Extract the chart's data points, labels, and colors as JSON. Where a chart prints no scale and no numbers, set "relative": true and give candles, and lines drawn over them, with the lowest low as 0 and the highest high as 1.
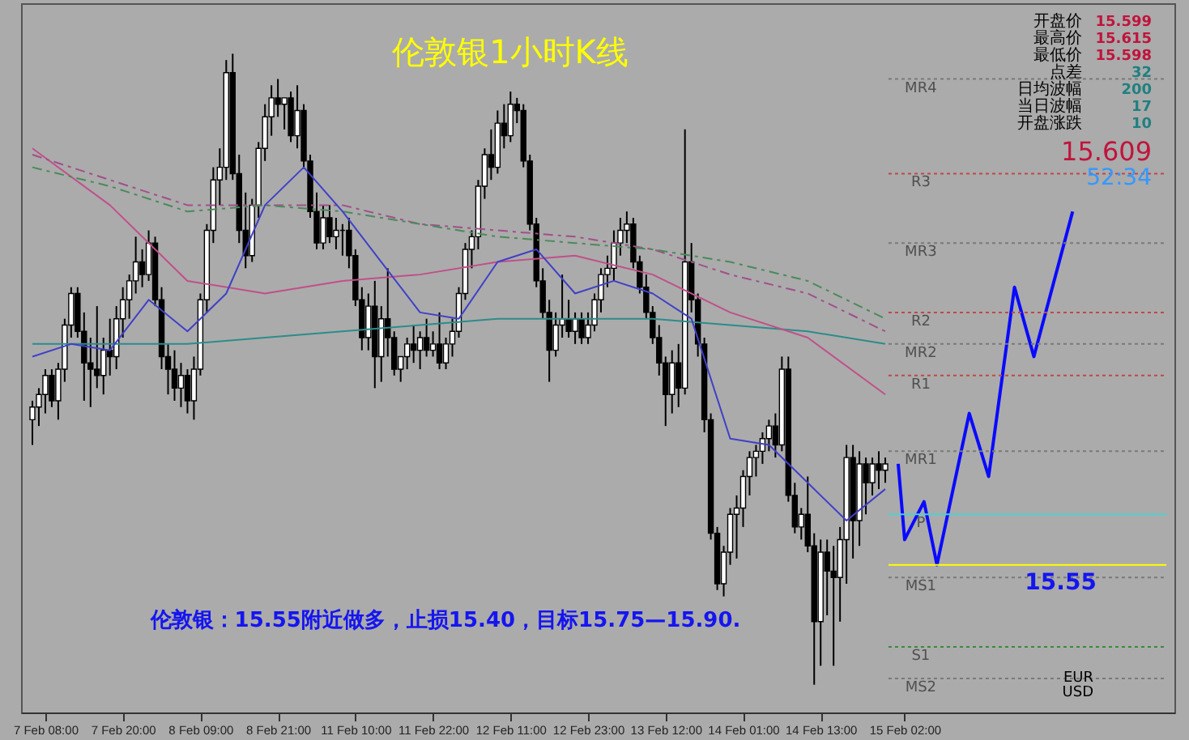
{
  "chart_data": {
    "type": "candlestick",
    "title": "伦敦银1小时K线",
    "relative": true,
    "grid": false,
    "legend": false,
    "tick_labels": "x",
    "categories": [
      null,
      null,
      "7 Feb 08:00",
      null,
      null,
      null,
      null,
      null,
      null,
      null,
      null,
      null,
      null,
      null,
      "7 Feb 20:00",
      null,
      null,
      null,
      null,
      null,
      null,
      null,
      null,
      null,
      null,
      null,
      "8 Feb 09:00",
      null,
      null,
      null,
      null,
      null,
      null,
      null,
      null,
      null,
      null,
      null,
      "8 Feb 21:00",
      null,
      null,
      null,
      null,
      null,
      null,
      null,
      null,
      null,
      null,
      null,
      "11 Feb 10:00",
      null,
      null,
      null,
      null,
      null,
      null,
      null,
      null,
      null,
      null,
      null,
      "11 Feb 22:00",
      null,
      null,
      null,
      null,
      null,
      null,
      null,
      null,
      null,
      null,
      null,
      "12 Feb 11:00",
      null,
      null,
      null,
      null,
      null,
      null,
      null,
      null,
      null,
      null,
      null,
      "12 Feb 23:00",
      null,
      null,
      null,
      null,
      null,
      null,
      null,
      null,
      null,
      null,
      null,
      "13 Feb 12:00",
      null,
      null,
      null,
      null,
      null,
      null,
      null,
      null,
      null,
      null,
      null,
      "14 Feb 01:00",
      null,
      null,
      null,
      null,
      null,
      null,
      null,
      null,
      null,
      null,
      null,
      "14 Feb 13:00",
      null,
      null,
      null,
      null,
      null,
      null,
      null,
      null,
      null,
      null,
      null,
      null,
      "15 Feb 02:00",
      null,
      null,
      null,
      null,
      null,
      null,
      null,
      null,
      null,
      null,
      null,
      null,
      null,
      null,
      null,
      null,
      null,
      null,
      null,
      null,
      null,
      null,
      null,
      null,
      null,
      null,
      null,
      null,
      null,
      null,
      null,
      null,
      null,
      null,
      null,
      null,
      null,
      null,
      null,
      null
    ],
    "ohlc": [
      [
        0.42,
        0.45,
        0.38,
        0.44
      ],
      [
        0.44,
        0.47,
        0.41,
        0.46
      ],
      [
        0.46,
        0.5,
        0.43,
        0.49
      ],
      [
        0.49,
        0.5,
        0.44,
        0.45
      ],
      [
        0.45,
        0.51,
        0.42,
        0.5
      ],
      [
        0.5,
        0.58,
        0.48,
        0.57
      ],
      [
        0.57,
        0.63,
        0.55,
        0.62
      ],
      [
        0.62,
        0.63,
        0.55,
        0.56
      ],
      [
        0.56,
        0.59,
        0.45,
        0.51
      ],
      [
        0.51,
        0.55,
        0.44,
        0.5
      ],
      [
        0.5,
        0.6,
        0.47,
        0.49
      ],
      [
        0.49,
        0.55,
        0.46,
        0.53
      ],
      [
        0.53,
        0.58,
        0.49,
        0.52
      ],
      [
        0.52,
        0.6,
        0.5,
        0.58
      ],
      [
        0.58,
        0.63,
        0.55,
        0.61
      ],
      [
        0.61,
        0.65,
        0.58,
        0.64
      ],
      [
        0.64,
        0.71,
        0.62,
        0.67
      ],
      [
        0.67,
        0.69,
        0.63,
        0.65
      ],
      [
        0.65,
        0.72,
        0.64,
        0.7
      ],
      [
        0.7,
        0.71,
        0.6,
        0.61
      ],
      [
        0.61,
        0.63,
        0.5,
        0.52
      ],
      [
        0.52,
        0.54,
        0.46,
        0.5
      ],
      [
        0.5,
        0.53,
        0.45,
        0.47
      ],
      [
        0.47,
        0.51,
        0.44,
        0.49
      ],
      [
        0.49,
        0.5,
        0.43,
        0.45
      ],
      [
        0.45,
        0.52,
        0.42,
        0.5
      ],
      [
        0.5,
        0.62,
        0.49,
        0.61
      ],
      [
        0.61,
        0.73,
        0.59,
        0.72
      ],
      [
        0.72,
        0.82,
        0.7,
        0.8
      ],
      [
        0.8,
        0.85,
        0.76,
        0.82
      ],
      [
        0.82,
        0.99,
        0.8,
        0.97
      ],
      [
        0.97,
        1.0,
        0.8,
        0.81
      ],
      [
        0.81,
        0.84,
        0.7,
        0.72
      ],
      [
        0.72,
        0.78,
        0.66,
        0.68
      ],
      [
        0.68,
        0.77,
        0.67,
        0.76
      ],
      [
        0.76,
        0.86,
        0.74,
        0.85
      ],
      [
        0.85,
        0.92,
        0.83,
        0.9
      ],
      [
        0.9,
        0.95,
        0.87,
        0.93
      ],
      [
        0.93,
        0.96,
        0.9,
        0.92
      ],
      [
        0.92,
        0.93,
        0.88,
        0.93
      ],
      [
        0.93,
        0.94,
        0.86,
        0.87
      ],
      [
        0.87,
        0.95,
        0.85,
        0.91
      ],
      [
        0.91,
        0.92,
        0.82,
        0.83
      ],
      [
        0.83,
        0.84,
        0.74,
        0.75
      ],
      [
        0.75,
        0.78,
        0.69,
        0.7
      ],
      [
        0.7,
        0.76,
        0.69,
        0.74
      ],
      [
        0.74,
        0.76,
        0.7,
        0.71
      ],
      [
        0.71,
        0.74,
        0.69,
        0.72
      ],
      [
        0.72,
        0.73,
        0.68,
        0.72
      ],
      [
        0.72,
        0.74,
        0.66,
        0.68
      ],
      [
        0.68,
        0.69,
        0.6,
        0.61
      ],
      [
        0.61,
        0.63,
        0.53,
        0.55
      ],
      [
        0.55,
        0.62,
        0.53,
        0.6
      ],
      [
        0.6,
        0.64,
        0.47,
        0.52
      ],
      [
        0.52,
        0.6,
        0.48,
        0.58
      ],
      [
        0.58,
        0.66,
        0.52,
        0.55
      ],
      [
        0.55,
        0.56,
        0.49,
        0.5
      ],
      [
        0.5,
        0.52,
        0.48,
        0.52
      ],
      [
        0.52,
        0.55,
        0.5,
        0.54
      ],
      [
        0.54,
        0.57,
        0.51,
        0.53
      ],
      [
        0.53,
        0.56,
        0.5,
        0.55
      ],
      [
        0.55,
        0.58,
        0.52,
        0.53
      ],
      [
        0.53,
        0.56,
        0.52,
        0.54
      ],
      [
        0.54,
        0.59,
        0.5,
        0.51
      ],
      [
        0.51,
        0.55,
        0.5,
        0.54
      ],
      [
        0.54,
        0.58,
        0.52,
        0.56
      ],
      [
        0.56,
        0.63,
        0.55,
        0.62
      ],
      [
        0.62,
        0.7,
        0.61,
        0.69
      ],
      [
        0.69,
        0.72,
        0.66,
        0.71
      ],
      [
        0.71,
        0.8,
        0.69,
        0.79
      ],
      [
        0.79,
        0.85,
        0.77,
        0.84
      ],
      [
        0.84,
        0.88,
        0.8,
        0.82
      ],
      [
        0.82,
        0.91,
        0.81,
        0.89
      ],
      [
        0.89,
        0.92,
        0.85,
        0.87
      ],
      [
        0.87,
        0.94,
        0.86,
        0.92
      ],
      [
        0.92,
        0.93,
        0.89,
        0.91
      ],
      [
        0.91,
        0.92,
        0.82,
        0.83
      ],
      [
        0.83,
        0.84,
        0.72,
        0.73
      ],
      [
        0.73,
        0.74,
        0.63,
        0.64
      ],
      [
        0.64,
        0.66,
        0.58,
        0.59
      ],
      [
        0.59,
        0.61,
        0.48,
        0.53
      ],
      [
        0.53,
        0.59,
        0.52,
        0.57
      ],
      [
        0.57,
        0.65,
        0.55,
        0.58
      ],
      [
        0.58,
        0.61,
        0.55,
        0.56
      ],
      [
        0.56,
        0.59,
        0.54,
        0.58
      ],
      [
        0.58,
        0.59,
        0.54,
        0.55
      ],
      [
        0.55,
        0.59,
        0.54,
        0.57
      ],
      [
        0.57,
        0.62,
        0.56,
        0.61
      ],
      [
        0.61,
        0.66,
        0.59,
        0.65
      ],
      [
        0.65,
        0.68,
        0.63,
        0.66
      ],
      [
        0.66,
        0.72,
        0.64,
        0.7
      ],
      [
        0.7,
        0.74,
        0.68,
        0.72
      ],
      [
        0.72,
        0.75,
        0.7,
        0.73
      ],
      [
        0.73,
        0.74,
        0.66,
        0.67
      ],
      [
        0.67,
        0.68,
        0.62,
        0.63
      ],
      [
        0.63,
        0.65,
        0.58,
        0.59
      ],
      [
        0.59,
        0.6,
        0.54,
        0.55
      ],
      [
        0.55,
        0.57,
        0.49,
        0.51
      ],
      [
        0.51,
        0.52,
        0.41,
        0.46
      ],
      [
        0.46,
        0.53,
        0.43,
        0.51
      ],
      [
        0.51,
        0.54,
        0.44,
        0.47
      ],
      [
        0.47,
        0.88,
        0.46,
        0.67
      ],
      [
        0.67,
        0.7,
        0.59,
        0.61
      ],
      [
        0.61,
        0.62,
        0.52,
        0.54
      ],
      [
        0.54,
        0.55,
        0.4,
        0.42
      ],
      [
        0.42,
        0.43,
        0.23,
        0.24
      ],
      [
        0.24,
        0.25,
        0.15,
        0.16
      ],
      [
        0.16,
        0.22,
        0.14,
        0.21
      ],
      [
        0.21,
        0.28,
        0.19,
        0.27
      ],
      [
        0.27,
        0.3,
        0.2,
        0.28
      ],
      [
        0.28,
        0.34,
        0.25,
        0.33
      ],
      [
        0.33,
        0.37,
        0.3,
        0.36
      ],
      [
        0.36,
        0.38,
        0.33,
        0.37
      ],
      [
        0.37,
        0.4,
        0.35,
        0.39
      ],
      [
        0.39,
        0.42,
        0.37,
        0.41
      ],
      [
        0.41,
        0.43,
        0.36,
        0.38
      ],
      [
        0.38,
        0.52,
        0.37,
        0.5
      ],
      [
        0.5,
        0.52,
        0.29,
        0.3
      ],
      [
        0.3,
        0.32,
        0.24,
        0.25
      ],
      [
        0.25,
        0.28,
        0.23,
        0.27
      ],
      [
        0.27,
        0.33,
        0.21,
        0.22
      ],
      [
        0.22,
        0.24,
        0.0,
        0.1
      ],
      [
        0.1,
        0.23,
        0.03,
        0.21
      ],
      [
        0.21,
        0.23,
        0.11,
        0.18
      ],
      [
        0.18,
        0.22,
        0.03,
        0.17
      ],
      [
        0.17,
        0.25,
        0.1,
        0.23
      ],
      [
        0.23,
        0.38,
        0.16,
        0.36
      ],
      [
        0.36,
        0.38,
        0.2,
        0.26
      ],
      [
        0.26,
        0.37,
        0.22,
        0.35
      ],
      [
        0.35,
        0.36,
        0.27,
        0.32
      ],
      [
        0.32,
        0.36,
        0.3,
        0.35
      ],
      [
        0.35,
        0.37,
        0.31,
        0.34
      ],
      [
        0.34,
        0.36,
        0.32,
        0.35
      ],
      null,
      null,
      null,
      null,
      null,
      null,
      null,
      null,
      null,
      null,
      null,
      null,
      null,
      null,
      null,
      null,
      null,
      null,
      null,
      null,
      null,
      null,
      null,
      null,
      null,
      null,
      null,
      null,
      null,
      null,
      null,
      null,
      null,
      null,
      null,
      null,
      null,
      null,
      null,
      null,
      null,
      null,
      null
    ],
    "series": [
      {
        "type": "line",
        "color": "#2e8b8b",
        "line_style": "solid",
        "values": [
          0.54,
          null,
          null,
          null,
          null,
          null,
          null,
          null,
          null,
          null,
          null,
          null,
          0.54,
          null,
          null,
          null,
          null,
          null,
          null,
          null,
          null,
          null,
          null,
          null,
          0.54,
          null,
          null,
          null,
          null,
          null,
          null,
          null,
          null,
          null,
          null,
          null,
          0.55,
          null,
          null,
          null,
          null,
          null,
          null,
          null,
          null,
          null,
          null,
          null,
          0.56,
          null,
          null,
          null,
          null,
          null,
          null,
          null,
          null,
          null,
          null,
          null,
          0.57,
          null,
          null,
          null,
          null,
          null,
          null,
          null,
          null,
          null,
          null,
          null,
          0.58,
          null,
          null,
          null,
          null,
          null,
          null,
          null,
          null,
          null,
          null,
          null,
          0.58,
          null,
          null,
          null,
          null,
          null,
          null,
          null,
          null,
          null,
          null,
          null,
          0.58,
          null,
          null,
          null,
          null,
          null,
          null,
          null,
          null,
          null,
          null,
          null,
          0.57,
          null,
          null,
          null,
          null,
          null,
          null,
          null,
          null,
          null,
          null,
          null,
          0.56,
          null,
          null,
          null,
          null,
          null,
          null,
          null,
          null,
          null,
          null,
          null,
          0.54,
          null,
          null,
          null,
          null,
          null,
          null,
          null,
          null,
          null,
          null,
          null,
          null,
          null,
          null,
          null,
          null,
          null,
          null,
          null,
          null,
          null,
          null,
          null,
          null,
          null,
          null,
          null,
          null,
          null,
          null,
          null,
          null,
          null,
          null,
          null,
          null,
          null,
          null,
          null,
          null,
          null,
          null,
          null
        ]
      },
      {
        "type": "line",
        "color": "#c0508a",
        "line_style": "solid",
        "values": [
          0.85,
          null,
          null,
          null,
          null,
          null,
          null,
          null,
          null,
          null,
          null,
          null,
          0.76,
          null,
          null,
          null,
          null,
          null,
          null,
          null,
          null,
          null,
          null,
          null,
          0.64,
          null,
          null,
          null,
          null,
          null,
          null,
          null,
          null,
          null,
          null,
          null,
          0.62,
          null,
          null,
          null,
          null,
          null,
          null,
          null,
          null,
          null,
          null,
          null,
          0.64,
          null,
          null,
          null,
          null,
          null,
          null,
          null,
          null,
          null,
          null,
          null,
          0.65,
          null,
          null,
          null,
          null,
          null,
          null,
          null,
          null,
          null,
          null,
          null,
          0.67,
          null,
          null,
          null,
          null,
          null,
          null,
          null,
          null,
          null,
          null,
          null,
          0.68,
          null,
          null,
          null,
          null,
          null,
          null,
          null,
          null,
          null,
          null,
          null,
          0.65,
          null,
          null,
          null,
          null,
          null,
          null,
          null,
          null,
          null,
          null,
          null,
          0.59,
          null,
          null,
          null,
          null,
          null,
          null,
          null,
          null,
          null,
          null,
          null,
          0.55,
          null,
          null,
          null,
          null,
          null,
          null,
          null,
          null,
          null,
          null,
          null,
          0.46,
          null,
          null,
          null,
          null,
          null,
          null,
          null,
          null,
          null,
          null,
          null,
          null,
          null,
          null,
          null,
          null,
          null,
          null,
          null,
          null,
          null,
          null,
          null,
          null,
          null,
          null,
          null,
          null,
          null,
          null,
          null,
          null,
          null,
          null,
          null,
          null,
          null,
          null,
          null,
          null,
          null,
          null,
          null
        ]
      },
      {
        "type": "line",
        "color": "#a0508a",
        "line_style": "dashed",
        "values": [
          0.84,
          null,
          null,
          null,
          null,
          null,
          null,
          null,
          null,
          null,
          null,
          null,
          0.8,
          null,
          null,
          null,
          null,
          null,
          null,
          null,
          null,
          null,
          null,
          null,
          0.76,
          null,
          null,
          null,
          null,
          null,
          null,
          null,
          null,
          null,
          null,
          null,
          0.76,
          null,
          null,
          null,
          null,
          null,
          null,
          null,
          null,
          null,
          null,
          null,
          0.76,
          null,
          null,
          null,
          null,
          null,
          null,
          null,
          null,
          null,
          null,
          null,
          0.73,
          null,
          null,
          null,
          null,
          null,
          null,
          null,
          null,
          null,
          null,
          null,
          0.72,
          null,
          null,
          null,
          null,
          null,
          null,
          null,
          null,
          null,
          null,
          null,
          0.71,
          null,
          null,
          null,
          null,
          null,
          null,
          null,
          null,
          null,
          null,
          null,
          0.69,
          null,
          null,
          null,
          null,
          null,
          null,
          null,
          null,
          null,
          null,
          null,
          0.65,
          null,
          null,
          null,
          null,
          null,
          null,
          null,
          null,
          null,
          null,
          null,
          0.62,
          null,
          null,
          null,
          null,
          null,
          null,
          null,
          null,
          null,
          null,
          null,
          0.56,
          null,
          null,
          null,
          null,
          null,
          null,
          null,
          null,
          null,
          null,
          null,
          null,
          null,
          null,
          null,
          null,
          null,
          null,
          null,
          null,
          null,
          null,
          null,
          null,
          null,
          null,
          null,
          null,
          null,
          null,
          null,
          null,
          null,
          null,
          null,
          null,
          null,
          null,
          null,
          null,
          null,
          null,
          null
        ]
      },
      {
        "type": "line",
        "color": "#4a8a5a",
        "line_style": "dashed",
        "values": [
          0.82,
          null,
          null,
          null,
          null,
          null,
          null,
          null,
          null,
          null,
          null,
          null,
          0.79,
          null,
          null,
          null,
          null,
          null,
          null,
          null,
          null,
          null,
          null,
          null,
          0.75,
          null,
          null,
          null,
          null,
          null,
          null,
          null,
          null,
          null,
          null,
          null,
          0.76,
          null,
          null,
          null,
          null,
          null,
          null,
          null,
          null,
          null,
          null,
          null,
          0.75,
          null,
          null,
          null,
          null,
          null,
          null,
          null,
          null,
          null,
          null,
          null,
          0.73,
          null,
          null,
          null,
          null,
          null,
          null,
          null,
          null,
          null,
          null,
          null,
          0.71,
          null,
          null,
          null,
          null,
          null,
          null,
          null,
          null,
          null,
          null,
          null,
          0.7,
          null,
          null,
          null,
          null,
          null,
          null,
          null,
          null,
          null,
          null,
          null,
          0.69,
          null,
          null,
          null,
          null,
          null,
          null,
          null,
          null,
          null,
          null,
          null,
          0.67,
          null,
          null,
          null,
          null,
          null,
          null,
          null,
          null,
          null,
          null,
          null,
          0.64,
          null,
          null,
          null,
          null,
          null,
          null,
          null,
          null,
          null,
          null,
          null,
          0.58,
          null,
          null,
          null,
          null,
          null,
          null,
          null,
          null,
          null,
          null,
          null,
          null,
          null,
          null,
          null,
          null,
          null,
          null,
          null,
          null,
          null,
          null,
          null,
          null,
          null,
          null,
          null,
          null,
          null,
          null,
          null,
          null,
          null,
          null,
          null,
          null,
          null,
          null,
          null,
          null,
          null,
          null,
          null
        ]
      },
      {
        "type": "line",
        "color": "#4040c8",
        "line_style": "solid",
        "values": [
          0.52,
          null,
          null,
          null,
          null,
          null,
          0.54,
          null,
          null,
          null,
          null,
          null,
          0.53,
          null,
          null,
          null,
          null,
          null,
          0.61,
          null,
          null,
          null,
          null,
          null,
          0.56,
          null,
          null,
          null,
          null,
          null,
          0.62,
          null,
          null,
          null,
          null,
          null,
          0.76,
          null,
          null,
          null,
          null,
          null,
          0.82,
          null,
          null,
          null,
          null,
          null,
          0.75,
          null,
          null,
          null,
          null,
          null,
          0.67,
          null,
          null,
          null,
          null,
          null,
          0.59,
          null,
          null,
          null,
          null,
          null,
          0.58,
          null,
          null,
          null,
          null,
          null,
          0.67,
          null,
          null,
          null,
          null,
          null,
          0.69,
          null,
          null,
          null,
          null,
          null,
          0.62,
          null,
          null,
          null,
          null,
          null,
          0.64,
          null,
          null,
          null,
          null,
          null,
          0.62,
          null,
          null,
          null,
          null,
          null,
          0.58,
          null,
          null,
          null,
          null,
          null,
          0.39,
          null,
          null,
          null,
          null,
          null,
          0.38,
          null,
          null,
          null,
          null,
          null,
          0.32,
          null,
          null,
          null,
          null,
          null,
          0.26,
          null,
          null,
          null,
          null,
          null,
          0.31,
          null,
          null,
          null,
          null,
          null,
          null,
          null,
          null,
          null,
          null,
          null,
          null,
          null,
          null,
          null,
          null,
          null,
          null,
          null,
          null,
          null,
          null,
          null,
          null,
          null,
          null,
          null,
          null,
          null,
          null,
          null,
          null,
          null,
          null,
          null,
          null,
          null,
          null,
          null,
          null,
          null,
          null,
          null
        ]
      },
      {
        "type": "line",
        "color": "#0a0aff",
        "line_style": "solid",
        "values": [
          null,
          null,
          null,
          null,
          null,
          null,
          null,
          null,
          null,
          null,
          null,
          null,
          null,
          null,
          null,
          null,
          null,
          null,
          null,
          null,
          null,
          null,
          null,
          null,
          null,
          null,
          null,
          null,
          null,
          null,
          null,
          null,
          null,
          null,
          null,
          null,
          null,
          null,
          null,
          null,
          null,
          null,
          null,
          null,
          null,
          null,
          null,
          null,
          null,
          null,
          null,
          null,
          null,
          null,
          null,
          null,
          null,
          null,
          null,
          null,
          null,
          null,
          null,
          null,
          null,
          null,
          null,
          null,
          null,
          null,
          null,
          null,
          null,
          null,
          null,
          null,
          null,
          null,
          null,
          null,
          null,
          null,
          null,
          null,
          null,
          null,
          null,
          null,
          null,
          null,
          null,
          null,
          null,
          null,
          null,
          null,
          null,
          null,
          null,
          null,
          null,
          null,
          null,
          null,
          null,
          null,
          null,
          null,
          null,
          null,
          null,
          null,
          null,
          null,
          null,
          null,
          null,
          null,
          null,
          null,
          null,
          null,
          null,
          null,
          null,
          null,
          null,
          null,
          null,
          null,
          null,
          null,
          null,
          null,
          0.35,
          0.23,
          null,
          null,
          0.29,
          null,
          0.19,
          null,
          null,
          null,
          null,
          0.43,
          null,
          null,
          0.33,
          null,
          null,
          null,
          0.63,
          null,
          null,
          0.52,
          null,
          null,
          null,
          null,
          null,
          0.75,
          null,
          null,
          null,
          null,
          null,
          null,
          null,
          null,
          null,
          null,
          null,
          null,
          null,
          null
        ]
      }
    ],
    "ref_lines": [
      {
        "axis": "y",
        "value": 0.96,
        "label": "MR4",
        "color": "#7a7a7a",
        "line_style": "dotted"
      },
      {
        "axis": "y",
        "value": 0.81,
        "label": "R3",
        "color": "#c04848",
        "line_style": "dotted"
      },
      {
        "axis": "y",
        "value": 0.7,
        "label": "MR3",
        "color": "#7a7a7a",
        "line_style": "dotted"
      },
      {
        "axis": "y",
        "value": 0.59,
        "label": "R2",
        "color": "#c04848",
        "line_style": "dotted"
      },
      {
        "axis": "y",
        "value": 0.54,
        "label": "MR2",
        "color": "#7a7a7a",
        "line_style": "dotted"
      },
      {
        "axis": "y",
        "value": 0.49,
        "label": "R1",
        "color": "#c04848",
        "line_style": "dotted"
      },
      {
        "axis": "y",
        "value": 0.37,
        "label": "MR1",
        "color": "#7a7a7a",
        "line_style": "dotted"
      },
      {
        "axis": "y",
        "value": 0.27,
        "label": "P",
        "color": "#50d0d0",
        "line_style": "solid"
      },
      {
        "axis": "y",
        "value": 0.19,
        "label": null,
        "color": "#ffff00",
        "line_style": "solid"
      },
      {
        "axis": "y",
        "value": 0.17,
        "label": "MS1",
        "color": "#7a7a7a",
        "line_style": "dotted"
      },
      {
        "axis": "y",
        "value": 0.06,
        "label": "S1",
        "color": "#3a8a3a",
        "line_style": "dotted"
      },
      {
        "axis": "y",
        "value": 0.01,
        "label": "MS2",
        "color": "#7a7a7a",
        "line_style": "dotted"
      }
    ],
    "annotations": [
      "伦敦银：15.55附近做多，止损15.40，目标15.75—15.90.",
      "开盘价",
      "15.599",
      "最高价",
      "15.615",
      "最低价",
      "15.598",
      "点差",
      "32",
      "日均波幅",
      "200",
      "当日波幅",
      "17",
      "开盘涨跌",
      "10",
      "15.609",
      "52:34",
      "EUR",
      "USD",
      {
        "text": "15.55",
        "y": 0.19
      }
    ]
  }
}
